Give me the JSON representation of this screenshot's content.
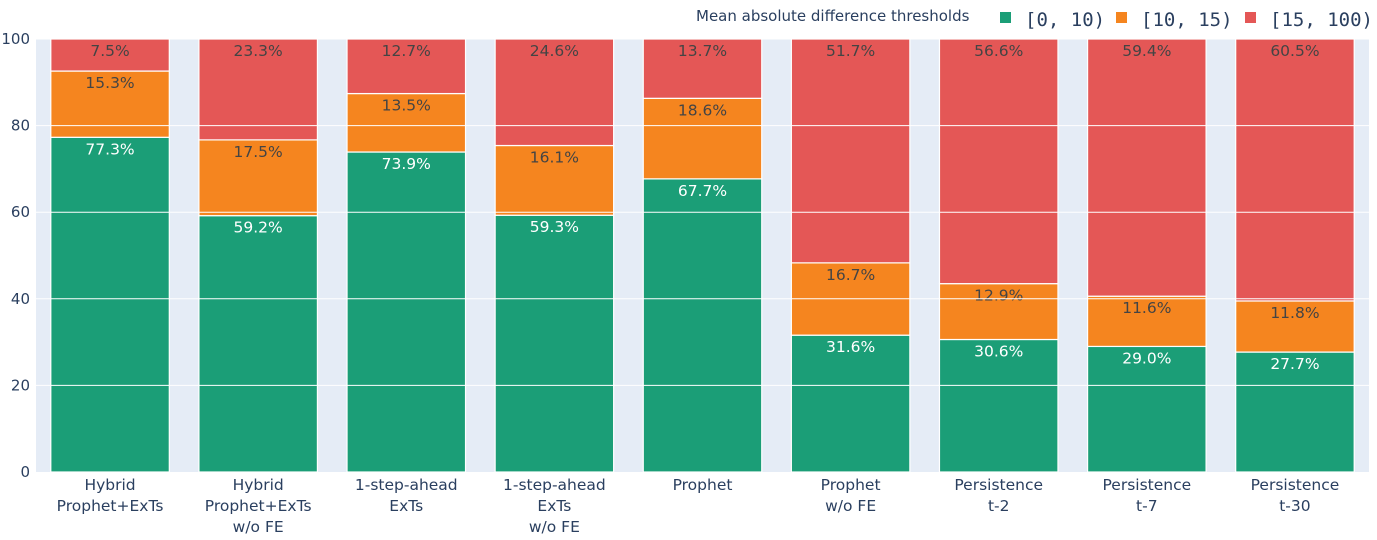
{
  "chart_data": {
    "type": "bar",
    "stacked": true,
    "title": "",
    "xlabel": "",
    "ylabel": "",
    "ylim": [
      0,
      100
    ],
    "yticks": [
      0,
      20,
      40,
      60,
      80,
      100
    ],
    "categories": [
      [
        "Hybrid",
        "Prophet+ExTs"
      ],
      [
        "Hybrid",
        "Prophet+ExTs",
        "w/o FE"
      ],
      [
        "1-step-ahead",
        "ExTs"
      ],
      [
        "1-step-ahead",
        "ExTs",
        "w/o FE"
      ],
      [
        "Prophet"
      ],
      [
        "Prophet",
        "w/o FE"
      ],
      [
        "Persistence",
        "t-2"
      ],
      [
        "Persistence",
        "t-7"
      ],
      [
        "Persistence",
        "t-30"
      ]
    ],
    "legend_title": "Mean absolute difference thresholds",
    "legend_position": "top-right",
    "series": [
      {
        "name": "[0, 10)",
        "color": "#1b9e77",
        "label_color": "#ffffff",
        "values": [
          77.3,
          59.2,
          73.9,
          59.3,
          67.7,
          31.6,
          30.6,
          29.0,
          27.7
        ],
        "labels": [
          "77.3%",
          "59.2%",
          "73.9%",
          "59.3%",
          "67.7%",
          "31.6%",
          "30.6%",
          "29.0%",
          "27.7%"
        ]
      },
      {
        "name": "[10, 15)",
        "color": "#f5851f",
        "label_color": "#444444",
        "values": [
          15.3,
          17.5,
          13.5,
          16.1,
          18.6,
          16.7,
          12.9,
          11.6,
          11.8
        ],
        "labels": [
          "15.3%",
          "17.5%",
          "13.5%",
          "16.1%",
          "18.6%",
          "16.7%",
          "12.9%",
          "11.6%",
          "11.8%"
        ]
      },
      {
        "name": "[15, 100)",
        "color": "#e45756",
        "label_color": "#444444",
        "values": [
          7.5,
          23.3,
          12.7,
          24.6,
          13.7,
          51.7,
          56.6,
          59.4,
          60.5
        ],
        "labels": [
          "7.5%",
          "23.3%",
          "12.7%",
          "24.6%",
          "13.7%",
          "51.7%",
          "56.6%",
          "59.4%",
          "60.5%"
        ]
      }
    ]
  },
  "colors": {
    "plot_background": "#e5ecf6",
    "axis_text": "#2a3f5f"
  }
}
